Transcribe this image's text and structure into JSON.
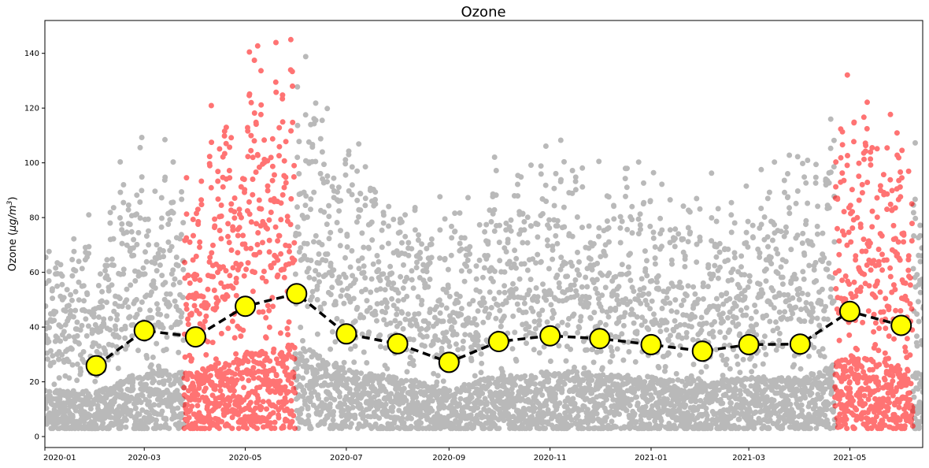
{
  "chart_data": {
    "type": "scatter",
    "title": "Ozone",
    "ylabel_text": "Ozone (",
    "ylabel_unit": "μg/m",
    "ylabel_exp": "3",
    "ylabel_close": ")",
    "xlabel": "",
    "xlim": [
      "2020-01-01",
      "2021-06-14"
    ],
    "ylim": [
      -4,
      152
    ],
    "yticks": [
      0,
      20,
      40,
      60,
      80,
      100,
      120,
      140
    ],
    "xticks": [
      {
        "date": "2020-01-01",
        "label": "2020-01"
      },
      {
        "date": "2020-03-01",
        "label": "2020-03"
      },
      {
        "date": "2020-05-01",
        "label": "2020-05"
      },
      {
        "date": "2020-07-01",
        "label": "2020-07"
      },
      {
        "date": "2020-09-01",
        "label": "2020-09"
      },
      {
        "date": "2020-11-01",
        "label": "2020-11"
      },
      {
        "date": "2021-01-01",
        "label": "2021-01"
      },
      {
        "date": "2021-03-01",
        "label": "2021-03"
      },
      {
        "date": "2021-05-01",
        "label": "2021-05"
      }
    ],
    "grid": false,
    "series": [
      {
        "kind": "hourly-scatter",
        "color": "#808080",
        "highlight_color": "#ff0000",
        "highlight_periods": [
          [
            "2020-03-25",
            "2020-05-31"
          ],
          [
            "2021-04-22",
            "2021-06-08"
          ]
        ]
      },
      {
        "kind": "monthly-mean",
        "line_color": "#000000",
        "marker_fill": "#ffff00",
        "x": [
          "2020-02-01",
          "2020-03-01",
          "2020-04-01",
          "2020-05-01",
          "2020-06-01",
          "2020-07-01",
          "2020-08-01",
          "2020-09-01",
          "2020-10-01",
          "2020-11-01",
          "2020-12-01",
          "2021-01-01",
          "2021-02-01",
          "2021-03-01",
          "2021-04-01",
          "2021-05-01",
          "2021-06-01"
        ],
        "values": [
          25.9,
          38.7,
          36.4,
          47.6,
          52.2,
          37.5,
          33.9,
          27.1,
          34.7,
          36.8,
          35.8,
          33.6,
          31.2,
          33.6,
          33.8,
          45.7,
          40.6
        ]
      }
    ]
  }
}
